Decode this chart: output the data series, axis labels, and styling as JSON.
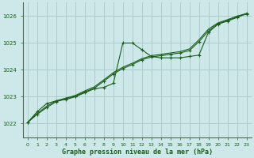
{
  "title": "Graphe pression niveau de la mer (hPa)",
  "bg_color": "#cce8e8",
  "grid_color": "#aacccc",
  "line_color": "#1a5c1a",
  "xlim": [
    -0.5,
    23.5
  ],
  "ylim": [
    1021.5,
    1026.5
  ],
  "yticks": [
    1022,
    1023,
    1024,
    1025,
    1026
  ],
  "xticks": [
    0,
    1,
    2,
    3,
    4,
    5,
    6,
    7,
    8,
    9,
    10,
    11,
    12,
    13,
    14,
    15,
    16,
    17,
    18,
    19,
    20,
    21,
    22,
    23
  ],
  "series1_x": [
    0,
    1,
    2,
    3,
    4,
    5,
    6,
    7,
    8,
    9,
    10,
    11,
    12,
    13,
    14,
    15,
    16,
    17,
    18,
    19,
    20,
    21,
    22,
    23
  ],
  "series1_y": [
    1022.05,
    1022.45,
    1022.75,
    1022.85,
    1022.9,
    1023.0,
    1023.15,
    1023.3,
    1023.35,
    1023.5,
    1025.0,
    1025.0,
    1024.75,
    1024.5,
    1024.45,
    1024.45,
    1024.45,
    1024.5,
    1024.55,
    1025.4,
    1025.7,
    1025.82,
    1025.95,
    1026.1
  ],
  "series2_x": [
    0,
    1,
    2,
    3,
    4,
    5,
    6,
    7,
    8,
    9,
    10,
    11,
    12,
    13,
    14,
    15,
    16,
    17,
    18,
    19,
    20,
    21,
    22,
    23
  ],
  "series2_y": [
    1022.05,
    1022.35,
    1022.6,
    1022.82,
    1022.92,
    1023.02,
    1023.18,
    1023.32,
    1023.58,
    1023.85,
    1024.05,
    1024.2,
    1024.38,
    1024.48,
    1024.53,
    1024.58,
    1024.63,
    1024.72,
    1025.05,
    1025.45,
    1025.72,
    1025.84,
    1025.97,
    1026.08
  ],
  "series3_x": [
    0,
    1,
    2,
    3,
    4,
    5,
    6,
    7,
    8,
    9,
    10,
    11,
    12,
    13,
    14,
    15,
    16,
    17,
    18,
    19,
    20,
    21,
    22,
    23
  ],
  "series3_y": [
    1022.05,
    1022.38,
    1022.65,
    1022.85,
    1022.95,
    1023.05,
    1023.22,
    1023.37,
    1023.63,
    1023.9,
    1024.1,
    1024.25,
    1024.42,
    1024.53,
    1024.58,
    1024.63,
    1024.68,
    1024.78,
    1025.12,
    1025.52,
    1025.75,
    1025.87,
    1026.0,
    1026.1
  ]
}
